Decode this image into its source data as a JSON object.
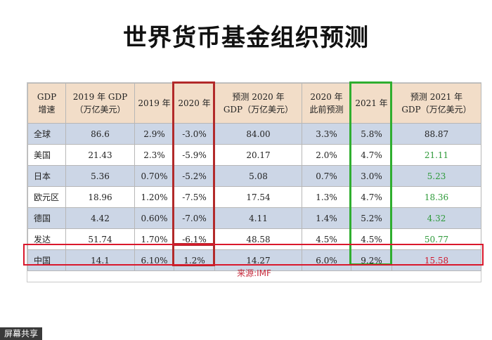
{
  "title": "世界货币基金组织预测",
  "table": {
    "headers": [
      [
        "GDP",
        "增速"
      ],
      [
        "2019 年 GDP",
        "（万亿美元）"
      ],
      [
        "2019 年"
      ],
      [
        "2020 年"
      ],
      [
        "预测 2020 年",
        "GDP（万亿美元）"
      ],
      [
        "2020 年",
        "此前预测"
      ],
      [
        "2021 年"
      ],
      [
        "预测 2021 年",
        "GDP（万亿美元）"
      ]
    ],
    "rows": [
      [
        "全球",
        "86.6",
        "2.9%",
        "-3.0%",
        "84.00",
        "3.3%",
        "5.8%",
        "88.87"
      ],
      [
        "美国",
        "21.43",
        "2.3%",
        "-5.9%",
        "20.17",
        "2.0%",
        "4.7%",
        "21.11"
      ],
      [
        "日本",
        "5.36",
        "0.70%",
        "-5.2%",
        "5.08",
        "0.7%",
        "3.0%",
        "5.23"
      ],
      [
        "欧元区",
        "18.96",
        "1.20%",
        "-7.5%",
        "17.54",
        "1.3%",
        "4.7%",
        "18.36"
      ],
      [
        "德国",
        "4.42",
        "0.60%",
        "-7.0%",
        "4.11",
        "1.4%",
        "5.2%",
        "4.32"
      ],
      [
        "发达",
        "51.74",
        "1.70%",
        "-6.1%",
        "48.58",
        "4.5%",
        "4.5%",
        "50.77"
      ],
      [
        "中国",
        "14.1",
        "6.10%",
        "1.2%",
        "14.27",
        "6.0%",
        "9.2%",
        "15.58"
      ]
    ]
  },
  "source": "来源:IMF",
  "watermark": "屏幕共享",
  "colors": {
    "header_bg": "#f2ddc8",
    "alt_row_bg": "#ccd6e6",
    "highlight_red": "#d0152a",
    "highlight_green": "#2fae2f",
    "positive_green_text": "#2e9a3a"
  }
}
